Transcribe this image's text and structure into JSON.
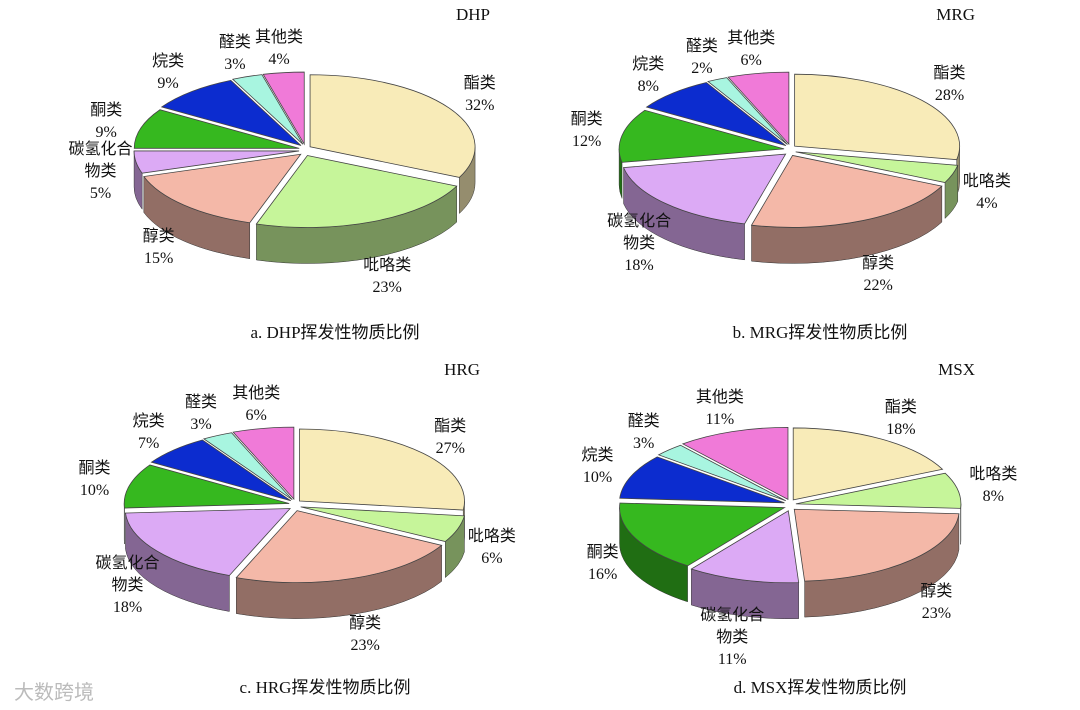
{
  "chart_data": [
    {
      "type": "pie",
      "title": "DHP",
      "caption": "a. DHP挥发性物质比例",
      "categories": [
        "酯类",
        "吡咯类",
        "醇类",
        "碳氢化合物类",
        "酮类",
        "烷类",
        "醛类",
        "其他类"
      ],
      "values": [
        32,
        23,
        15,
        5,
        9,
        9,
        3,
        4
      ],
      "value_labels": [
        "32%",
        "23%",
        "15%",
        "5%",
        "9%",
        "9%",
        "3%",
        "4%"
      ],
      "colors": [
        "#f8ebb8",
        "#c6f59a",
        "#f4b8a8",
        "#dcaaf5",
        "#36b81f",
        "#0c2ccf",
        "#a8f5e0",
        "#f07ad8"
      ]
    },
    {
      "type": "pie",
      "title": "MRG",
      "caption": "b. MRG挥发性物质比例",
      "categories": [
        "酯类",
        "吡咯类",
        "醇类",
        "碳氢化合物类",
        "酮类",
        "烷类",
        "醛类",
        "其他类"
      ],
      "values": [
        28,
        4,
        22,
        18,
        12,
        8,
        2,
        6
      ],
      "value_labels": [
        "28%",
        "4%",
        "22%",
        "18%",
        "12%",
        "8%",
        "2%",
        "6%"
      ],
      "colors": [
        "#f8ebb8",
        "#c6f59a",
        "#f4b8a8",
        "#dcaaf5",
        "#36b81f",
        "#0c2ccf",
        "#a8f5e0",
        "#f07ad8"
      ]
    },
    {
      "type": "pie",
      "title": "HRG",
      "caption": "c. HRG挥发性物质比例",
      "categories": [
        "酯类",
        "吡咯类",
        "醇类",
        "碳氢化合物类",
        "酮类",
        "烷类",
        "醛类",
        "其他类"
      ],
      "values": [
        27,
        6,
        23,
        18,
        10,
        7,
        3,
        6
      ],
      "value_labels": [
        "27%",
        "6%",
        "23%",
        "18%",
        "10%",
        "7%",
        "3%",
        "6%"
      ],
      "colors": [
        "#f8ebb8",
        "#c6f59a",
        "#f4b8a8",
        "#dcaaf5",
        "#36b81f",
        "#0c2ccf",
        "#a8f5e0",
        "#f07ad8"
      ]
    },
    {
      "type": "pie",
      "title": "MSX",
      "caption": "d. MSX挥发性物质比例",
      "categories": [
        "酯类",
        "吡咯类",
        "醇类",
        "碳氢化合物类",
        "酮类",
        "烷类",
        "醛类",
        "其他类"
      ],
      "values": [
        18,
        8,
        23,
        11,
        16,
        10,
        3,
        11
      ],
      "value_labels": [
        "18%",
        "8%",
        "23%",
        "11%",
        "16%",
        "10%",
        "3%",
        "11%"
      ],
      "colors": [
        "#f8ebb8",
        "#c6f59a",
        "#f4b8a8",
        "#dcaaf5",
        "#36b81f",
        "#0c2ccf",
        "#a8f5e0",
        "#f07ad8"
      ]
    }
  ],
  "watermark": "大数跨境"
}
